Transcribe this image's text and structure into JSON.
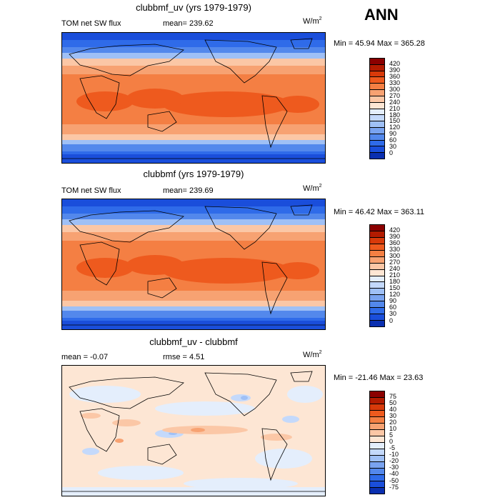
{
  "season": "ANN",
  "panels": [
    {
      "id": "top",
      "title": "clubbmf_uv (yrs 1979-1979)",
      "left_text": "TOM net SW flux",
      "stat_text": "mean=  239.62",
      "units_base": "W/m",
      "units_exp": "2",
      "minmax_text": "Min =  45.94 Max =  365.28",
      "legend_labels": [
        "420",
        "390",
        "360",
        "330",
        "300",
        "270",
        "240",
        "210",
        "180",
        "150",
        "120",
        "90",
        "60",
        "30",
        "0"
      ],
      "legend_colors": [
        "#8b0000",
        "#b31b00",
        "#d83a0a",
        "#ee5a1e",
        "#f47f43",
        "#f7a272",
        "#fbc7a6",
        "#fde6d4",
        "#e4eefc",
        "#c4d9fb",
        "#9fc0f6",
        "#79a3f0",
        "#5388ec",
        "#2f6be9",
        "#1a4edb",
        "#0a2fb0"
      ]
    },
    {
      "id": "middle",
      "title": "clubbmf (yrs 1979-1979)",
      "left_text": "TOM net SW flux",
      "stat_text": "mean=  239.69",
      "units_base": "W/m",
      "units_exp": "2",
      "minmax_text": "Min =  46.42 Max =  363.11",
      "legend_labels": [
        "420",
        "390",
        "360",
        "330",
        "300",
        "270",
        "240",
        "210",
        "180",
        "150",
        "120",
        "90",
        "60",
        "30",
        "0"
      ],
      "legend_colors": [
        "#8b0000",
        "#b31b00",
        "#d83a0a",
        "#ee5a1e",
        "#f47f43",
        "#f7a272",
        "#fbc7a6",
        "#fde6d4",
        "#e4eefc",
        "#c4d9fb",
        "#9fc0f6",
        "#79a3f0",
        "#5388ec",
        "#2f6be9",
        "#1a4edb",
        "#0a2fb0"
      ]
    },
    {
      "id": "bottom",
      "title": "clubbmf_uv - clubbmf",
      "left_text": "mean =   -0.07",
      "stat_text": "rmse =    4.51",
      "units_base": "W/m",
      "units_exp": "2",
      "minmax_text": "Min = -21.46 Max =   23.63",
      "legend_labels": [
        "75",
        "50",
        "40",
        "30",
        "20",
        "10",
        "5",
        "0",
        "-5",
        "-10",
        "-20",
        "-30",
        "-40",
        "-50",
        "-75"
      ],
      "legend_colors": [
        "#8b0000",
        "#b31b00",
        "#d83a0a",
        "#ee5a1e",
        "#f47f43",
        "#f7a272",
        "#fbc7a6",
        "#fde6d4",
        "#e4eefc",
        "#c4d9fb",
        "#9fc0f6",
        "#79a3f0",
        "#5388ec",
        "#2f6be9",
        "#1a4edb",
        "#0a2fb0"
      ]
    }
  ]
}
